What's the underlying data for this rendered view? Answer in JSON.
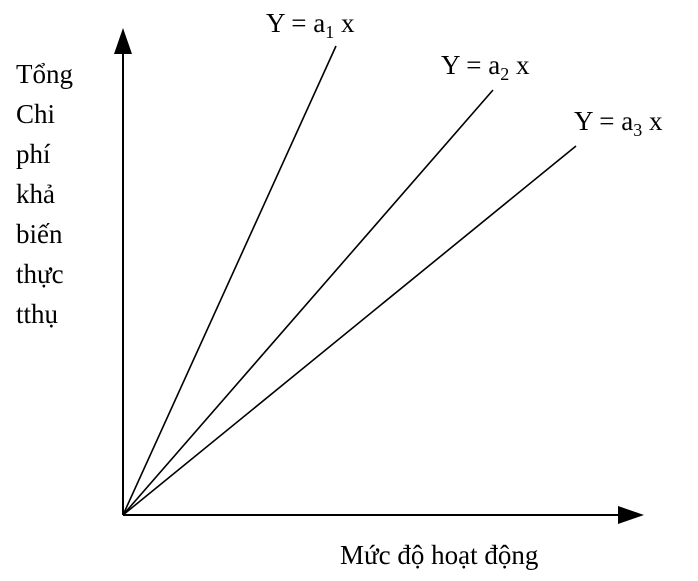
{
  "y_axis_label_lines": [
    "Tổng",
    "Chi",
    "phí",
    "khả",
    "biến",
    "thực",
    "tthụ"
  ],
  "x_axis_label": "Mức độ hoạt động",
  "lines": [
    {
      "base": "Y = a",
      "sub": "1",
      "tail": " x"
    },
    {
      "base": "Y = a",
      "sub": "2",
      "tail": " x"
    },
    {
      "base": "Y = a",
      "sub": "3",
      "tail": " x"
    }
  ],
  "colors": {
    "stroke": "#000000",
    "background": "#ffffff"
  }
}
